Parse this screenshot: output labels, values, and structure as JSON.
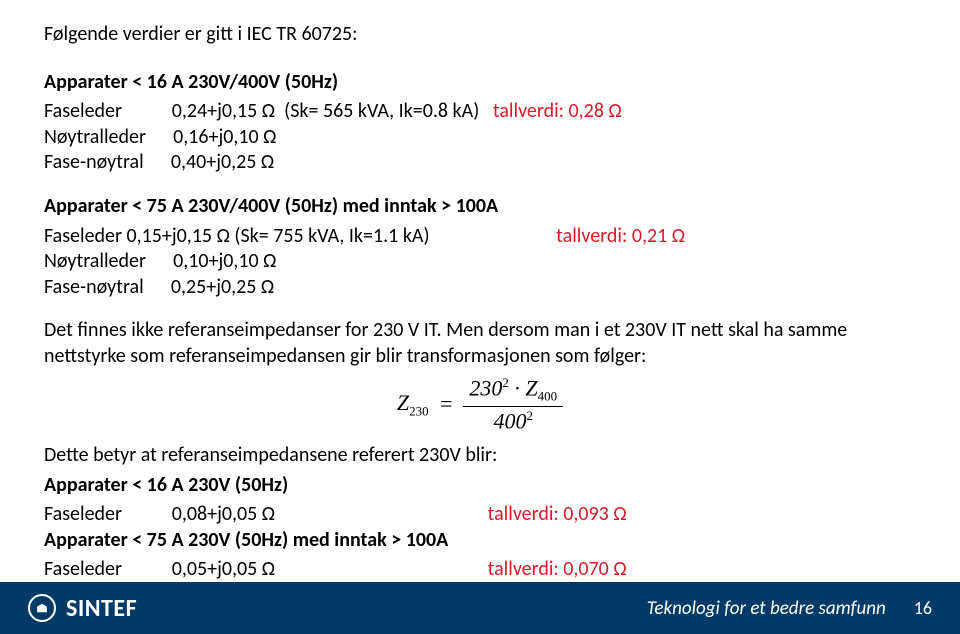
{
  "colors": {
    "text": "#000000",
    "accent_red": "#d81b2b",
    "footer_bg": "#003a66",
    "footer_text": "#ffffff",
    "page_bg": "#ffffff"
  },
  "typography": {
    "body_family": "Calibri, Arial, sans-serif",
    "body_size_pt": 15,
    "formula_family": "Cambria Math, Times New Roman, serif"
  },
  "header": "Følgende verdier er gitt i IEC TR 60725:",
  "section1": {
    "title": "Apparater < 16 A 230V/400V (50Hz)",
    "faseleder_label": "Faseleder",
    "faseleder_value": "0,24+j0,15 Ω  (Sk= 565 kVA, Ik=0.8 kA)",
    "faseleder_tallverdi": "tallverdi: 0,28 Ω",
    "noytralleder_label": "Nøytralleder",
    "noytralleder_value": "0,16+j0,10 Ω",
    "fasenoytral_label": "Fase-nøytral",
    "fasenoytral_value": "0,40+j0,25 Ω"
  },
  "section2": {
    "title": "Apparater < 75 A 230V/400V (50Hz) med inntak > 100A",
    "faseleder_label": "Faseleder",
    "faseleder_value": "0,15+j0,15 Ω (Sk= 755 kVA, Ik=1.1 kA)",
    "faseleder_tallverdi": "tallverdi: 0,21 Ω",
    "noytralleder_label": "Nøytralleder",
    "noytralleder_value": "0,10+j0,10 Ω",
    "fasenoytral_label": "Fase-nøytral",
    "fasenoytral_value": "0,25+j0,25 Ω"
  },
  "body_text": "Det finnes ikke referanseimpedanser for 230 V IT. Men dersom man i et 230V IT nett skal ha samme nettstyrke som referanseimpedansen gir blir transformasjonen som følger:",
  "formula": {
    "lhs_base": "Z",
    "lhs_sub": "230",
    "num_a": "230",
    "num_a_sup": "2",
    "num_dot": "∙",
    "num_b_base": "Z",
    "num_b_sub": "400",
    "den_a": "400",
    "den_a_sup": "2"
  },
  "section3": {
    "intro": "Dette betyr at referanseimpedansene referert 230V blir:",
    "title1": "Apparater < 16 A 230V (50Hz)",
    "faseleder1_label": "Faseleder",
    "faseleder1_value": "0,08+j0,05 Ω",
    "faseleder1_tallverdi": "tallverdi: 0,093 Ω",
    "title2": "Apparater < 75 A 230V (50Hz) med inntak > 100A",
    "faseleder2_label": "Faseleder",
    "faseleder2_value": "0,05+j0,05 Ω",
    "faseleder2_tallverdi": "tallverdi: 0,070 Ω"
  },
  "footer": {
    "brand": "SINTEF",
    "tagline": "Teknologi for et bedre samfunn",
    "page_number": "16"
  }
}
